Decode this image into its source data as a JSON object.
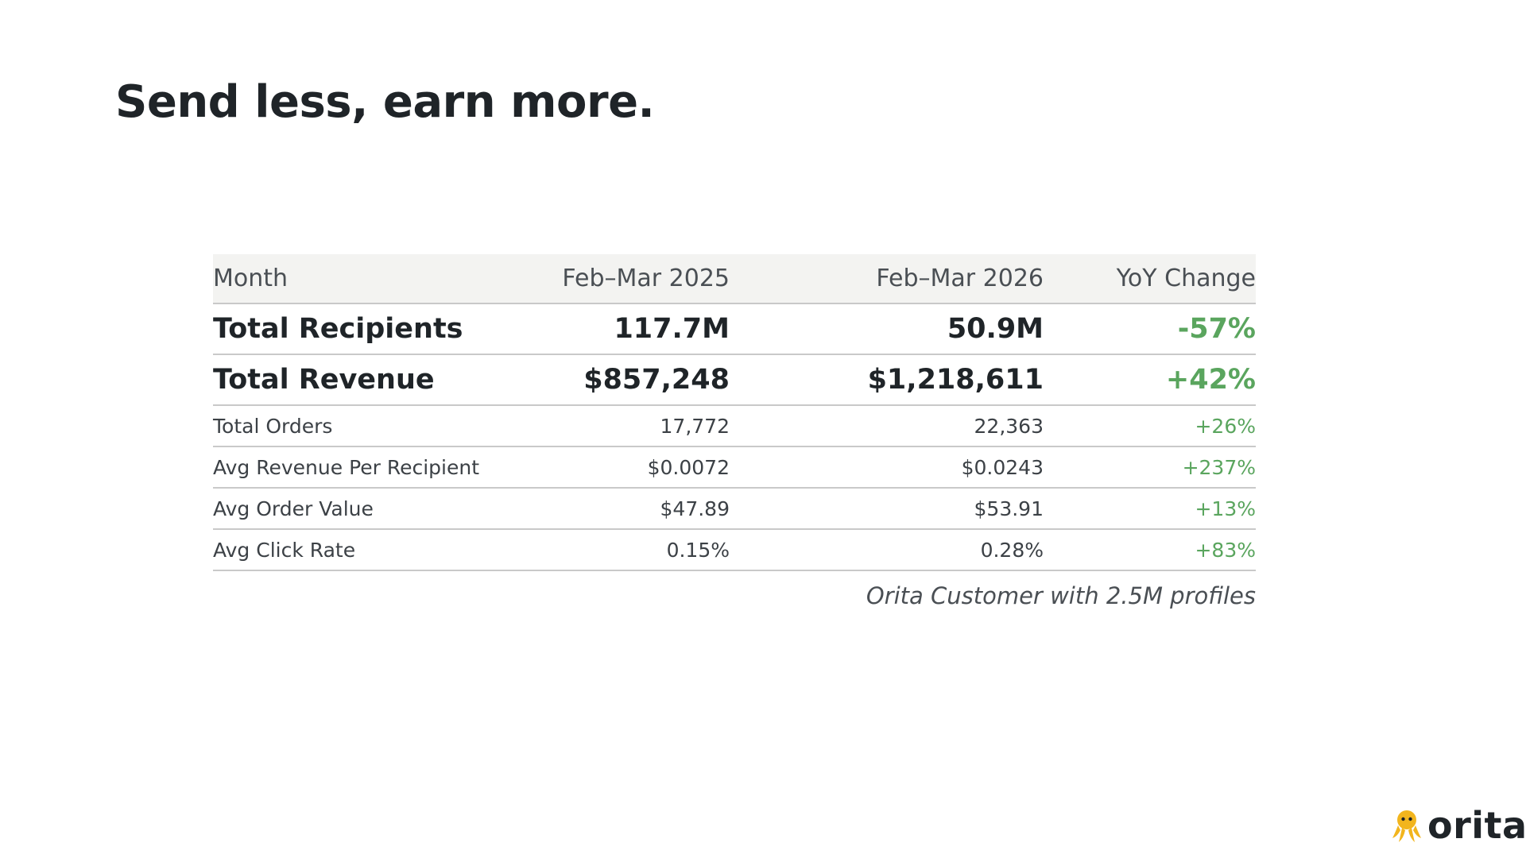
{
  "slide": {
    "title": "Send less, earn more."
  },
  "table": {
    "columns": [
      "Month",
      "Feb–Mar 2025",
      "Feb–Mar 2026",
      "YoY Change"
    ],
    "rows": [
      {
        "metric": "Total Recipients",
        "y2025": "117.7M",
        "y2026": "50.9M",
        "change": "-57%"
      },
      {
        "metric": "Total Revenue",
        "y2025": "$857,248",
        "y2026": "$1,218,611",
        "change": "+42%"
      },
      {
        "metric": "Total Orders",
        "y2025": "17,772",
        "y2026": "22,363",
        "change": "+26%"
      },
      {
        "metric": "Avg Revenue Per Recipient",
        "y2025": "$0.0072",
        "y2026": "$0.0243",
        "change": "+237%"
      },
      {
        "metric": "Avg Order Value",
        "y2025": "$47.89",
        "y2026": "$53.91",
        "change": "+13%"
      },
      {
        "metric": "Avg Click Rate",
        "y2025": "0.15%",
        "y2026": "0.28%",
        "change": "+83%"
      }
    ],
    "footnote": "Orita Customer with 2.5M profiles"
  },
  "logo": {
    "wordmark": "orita",
    "icon": "octopus-icon"
  },
  "colors": {
    "title": "#1f2428",
    "header_bg": "#f3f3f1",
    "positive": "#5aa55e",
    "rule": "#c9c9c9",
    "logo_accent": "#f2b51d"
  }
}
